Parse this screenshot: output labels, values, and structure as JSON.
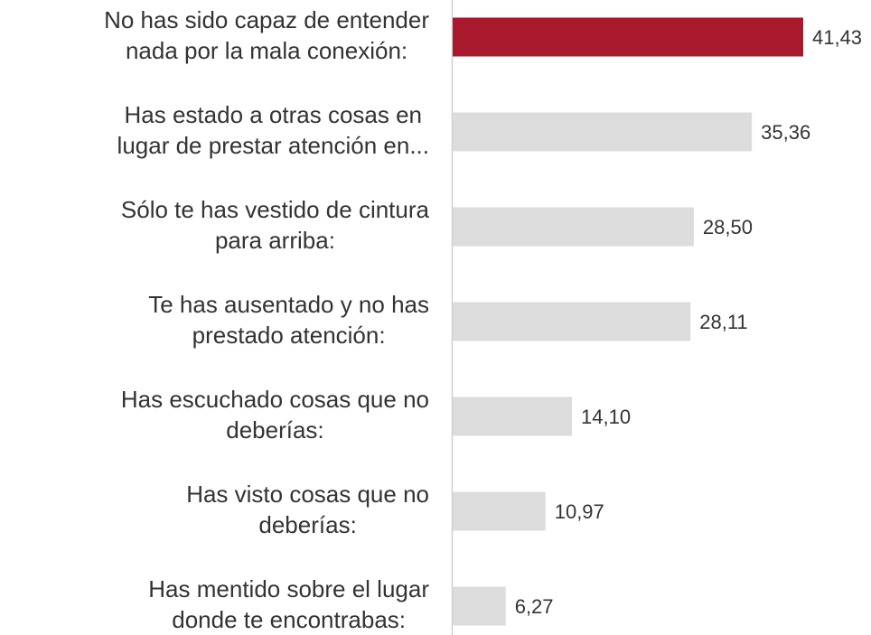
{
  "chart_data": {
    "type": "bar",
    "orientation": "horizontal",
    "categories": [
      [
        "No has sido capaz de entender",
        "nada por la mala conexión:"
      ],
      [
        "Has estado a otras cosas en",
        "lugar de prestar atención en..."
      ],
      [
        "Sólo te has vestido de cintura",
        "para arriba:"
      ],
      [
        "Te has ausentado y no has",
        "prestado atención:"
      ],
      [
        "Has escuchado cosas que no",
        "deberías:"
      ],
      [
        "Has visto cosas que no",
        "deberías:"
      ],
      [
        "Has mentido sobre el lugar",
        "donde te encontrabas:"
      ]
    ],
    "values": [
      41.43,
      35.36,
      28.5,
      28.11,
      14.1,
      10.97,
      6.27
    ],
    "value_labels": [
      "41,43",
      "35,36",
      "28,50",
      "28,11",
      "14,10",
      "10,97",
      "6,27"
    ],
    "colors": [
      "#a8192e",
      "#dcdcdc",
      "#dcdcdc",
      "#dcdcdc",
      "#dcdcdc",
      "#dcdcdc",
      "#dcdcdc"
    ]
  }
}
